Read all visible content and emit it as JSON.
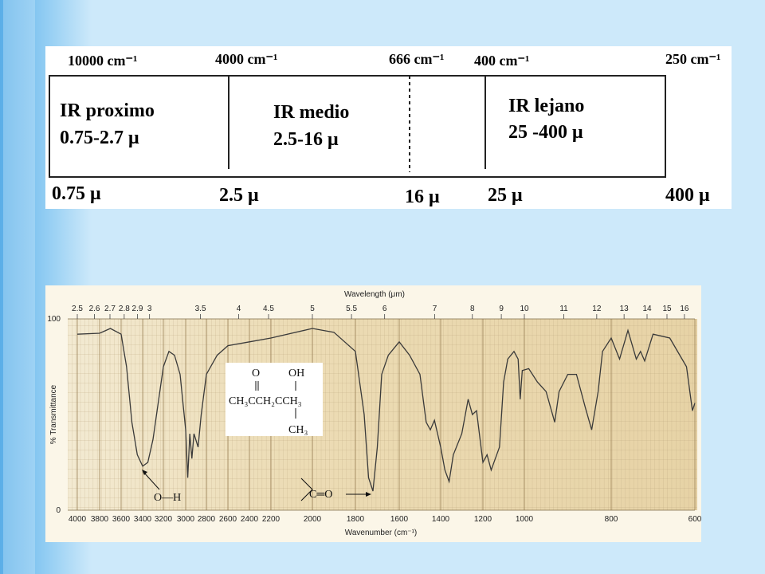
{
  "diagram": {
    "top_labels": [
      "10000 cm⁻¹",
      "4000 cm⁻¹",
      "666 cm⁻¹",
      "400 cm⁻¹",
      "250 cm⁻¹"
    ],
    "regions": [
      {
        "name": "IR proximo",
        "range": "0.75-2.7 μ"
      },
      {
        "name": "IR medio",
        "range": "2.5-16 μ"
      },
      {
        "name": "IR lejano",
        "range": "25 -400 μ"
      }
    ],
    "bottom_labels": [
      "0.75 μ",
      "2.5 μ",
      "16 μ",
      "25 μ",
      "400 μ"
    ]
  },
  "chart_data": {
    "type": "line",
    "x2label": "Wavelength (μm)",
    "xlabel": "Wavenumber (cm⁻¹)",
    "ylabel": "% Transmittance",
    "x": [
      4000,
      3800,
      3700,
      3600,
      3550,
      3500,
      3450,
      3400,
      3350,
      3300,
      3200,
      3150,
      3100,
      3050,
      3000,
      2980,
      2960,
      2940,
      2920,
      2880,
      2850,
      2800,
      2700,
      2600,
      2400,
      2200,
      2000,
      1900,
      1800,
      1760,
      1740,
      1720,
      1700,
      1680,
      1650,
      1600,
      1550,
      1500,
      1470,
      1450,
      1430,
      1400,
      1380,
      1360,
      1340,
      1300,
      1270,
      1250,
      1230,
      1200,
      1180,
      1160,
      1140,
      1120,
      1100,
      1080,
      1050,
      1030,
      1020,
      1010,
      990,
      970,
      950,
      930,
      920,
      900,
      880,
      860,
      845,
      830,
      820,
      800,
      780,
      760,
      740,
      730,
      720,
      700,
      660,
      620,
      606,
      600
    ],
    "values": [
      92,
      92.5,
      95,
      92,
      75,
      46,
      29,
      23,
      25,
      37,
      75,
      83,
      81,
      71,
      42,
      17,
      40,
      27,
      40,
      33,
      50,
      71,
      81,
      86,
      88,
      90,
      95,
      93,
      83,
      50,
      17,
      10,
      33,
      71,
      81,
      88,
      81,
      71,
      46,
      42,
      47,
      33,
      21,
      15,
      29,
      40,
      58,
      50,
      52,
      25,
      29,
      21,
      27,
      33,
      67,
      79,
      83,
      79,
      58,
      73,
      74,
      67,
      62,
      46,
      62,
      71,
      71,
      54,
      42,
      62,
      83,
      90,
      79,
      94,
      79,
      83,
      78,
      92,
      90,
      75,
      52,
      56
    ],
    "color": "#3a3a3a",
    "xlim": [
      4000,
      600
    ],
    "xticks": [
      4000,
      3800,
      3600,
      3400,
      3200,
      3000,
      2800,
      2600,
      2400,
      2200,
      2000,
      1800,
      1600,
      1400,
      1200,
      1000,
      800,
      600
    ],
    "x2ticks": [
      2.5,
      2.6,
      2.7,
      2.8,
      2.9,
      3,
      3.5,
      4,
      4.5,
      5,
      5.5,
      6,
      7,
      8,
      9,
      10,
      11,
      12,
      13,
      14,
      15,
      16
    ],
    "ylim": [
      0,
      100
    ],
    "yticks": [
      0,
      100
    ],
    "grid": true,
    "annotations": [
      "O—H",
      "C═O"
    ],
    "structure": [
      "O",
      "OH",
      "CH₃CCH₂CCH₃",
      "CH₃"
    ]
  }
}
